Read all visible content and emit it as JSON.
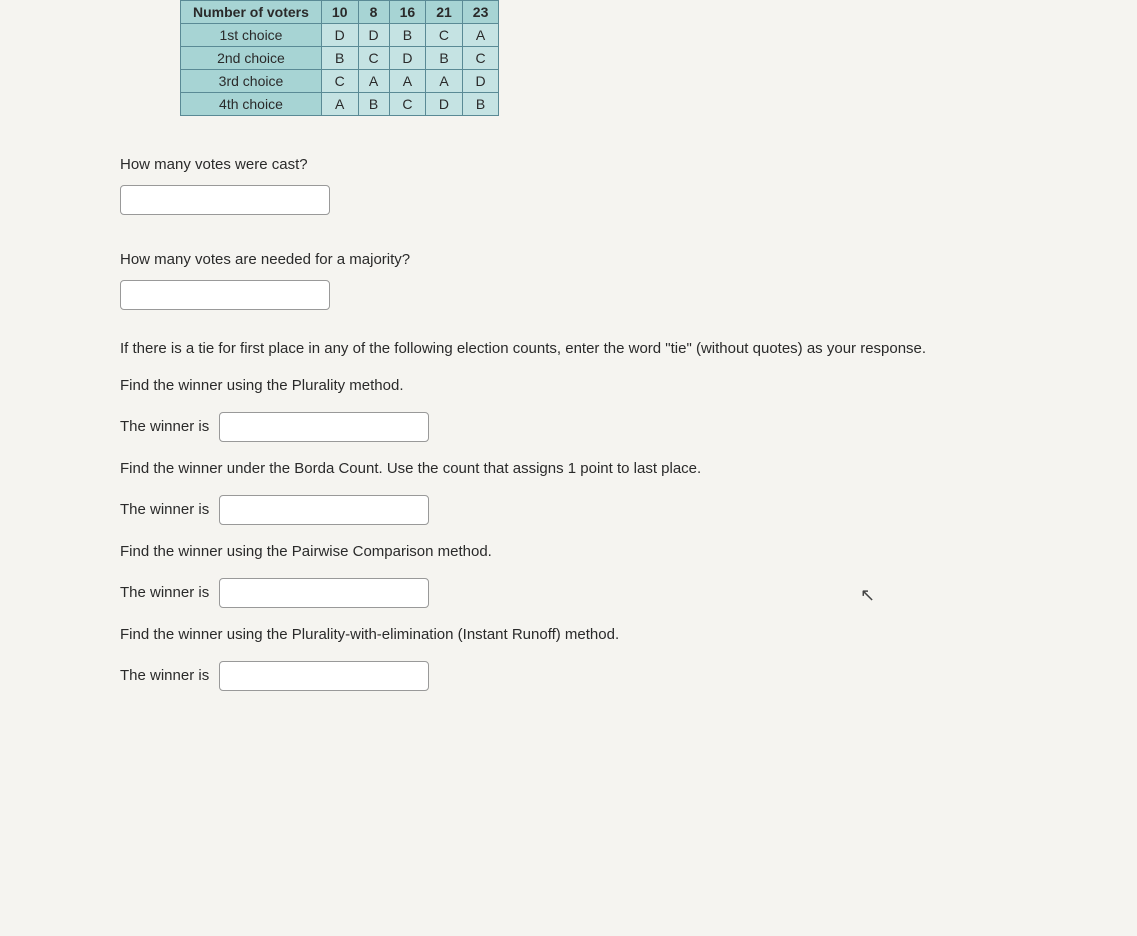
{
  "table": {
    "header_label": "Number of voters",
    "counts": [
      "10",
      "8",
      "16",
      "21",
      "23"
    ],
    "rows": [
      {
        "label": "1st choice",
        "cells": [
          "D",
          "D",
          "B",
          "C",
          "A"
        ]
      },
      {
        "label": "2nd choice",
        "cells": [
          "B",
          "C",
          "D",
          "B",
          "C"
        ]
      },
      {
        "label": "3rd choice",
        "cells": [
          "C",
          "A",
          "A",
          "A",
          "D"
        ]
      },
      {
        "label": "4th choice",
        "cells": [
          "A",
          "B",
          "C",
          "D",
          "B"
        ]
      }
    ],
    "colors": {
      "header_bg": "#a7d4d4",
      "cell_bg": "#c5e3e3",
      "border": "#5a8a95"
    }
  },
  "q1": "How many votes were cast?",
  "q2": "How many votes are needed for a majority?",
  "tie_note": "If there is a tie for first place in any of the following election counts, enter the word \"tie\" (without quotes) as your response.",
  "q3": "Find the winner using the Plurality method.",
  "q4": "Find the winner under the Borda Count. Use the count that assigns 1 point to last place.",
  "q5": "Find the winner using the Pairwise Comparison method.",
  "q6": "Find the winner using the Plurality-with-elimination (Instant Runoff) method.",
  "winner_label": "The winner is"
}
